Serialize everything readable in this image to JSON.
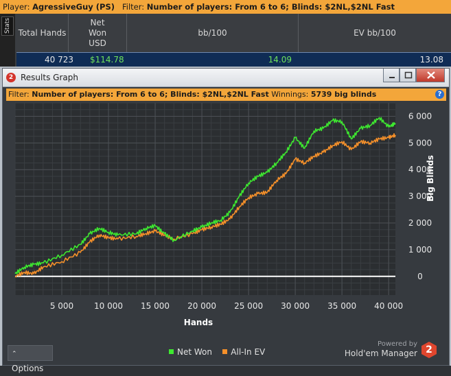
{
  "topbar": {
    "player_label": "Player:",
    "player_name": "AgressiveGuy (PS)",
    "filter_label": "Filter:",
    "filter_value": "Number of players: From 6 to 6; Blinds: $2NL,$2NL Fast"
  },
  "stats": {
    "tab_label": "Stats",
    "columns": [
      "Total Hands",
      "Net Won USD",
      "bb/100",
      "EV bb/100"
    ],
    "row": {
      "total_hands": "40 723",
      "net_won": "$114.78",
      "bb100": "14.09",
      "ev_bb100": "13.08"
    }
  },
  "window": {
    "app_icon": "2",
    "title": "Results Graph",
    "buttons": [
      "minimize-icon",
      "maximize-icon",
      "close-icon"
    ]
  },
  "filterbar": {
    "filter_label": "Filter:",
    "filter_value": "Number of players: From 6 to 6; Blinds: $2NL,$2NL Fast",
    "winnings_label": "Winnings:",
    "winnings_value": "5739 big blinds",
    "help_icon": "?"
  },
  "chart_data": {
    "type": "line",
    "xlabel": "Hands",
    "ylabel": "Big Blinds",
    "xlim": [
      0,
      40723
    ],
    "ylim": [
      -700,
      6500
    ],
    "xticks": [
      5000,
      10000,
      15000,
      20000,
      25000,
      30000,
      35000,
      40000
    ],
    "xtick_labels": [
      "5 000",
      "10 000",
      "15 000",
      "20 000",
      "25 000",
      "30 000",
      "35 000",
      "40 000"
    ],
    "yticks": [
      0,
      1000,
      2000,
      3000,
      4000,
      5000,
      6000
    ],
    "ytick_labels": [
      "0",
      "1 000",
      "2 000",
      "3 000",
      "4 000",
      "5 000",
      "6 000"
    ],
    "grid": true,
    "legend": "bottom",
    "colors": {
      "net_won": "#3ee830",
      "all_in_ev": "#f5902a",
      "zero_line": "#ffffff"
    },
    "series": [
      {
        "name": "Net Won",
        "x": [
          0,
          1000,
          2000,
          3000,
          5000,
          7000,
          8000,
          9000,
          10000,
          11000,
          13000,
          14000,
          15000,
          16000,
          17000,
          19000,
          20000,
          21000,
          22000,
          23000,
          24000,
          25000,
          26000,
          27000,
          28000,
          29000,
          30000,
          31000,
          32000,
          33000,
          34000,
          35000,
          36000,
          37000,
          38000,
          39000,
          40000,
          40723
        ],
        "values": [
          100,
          350,
          450,
          500,
          800,
          1200,
          1600,
          1800,
          1650,
          1550,
          1600,
          1800,
          1900,
          1600,
          1350,
          1700,
          1850,
          2000,
          2100,
          2400,
          3000,
          3500,
          3750,
          3900,
          4250,
          4650,
          5200,
          4800,
          5450,
          5550,
          5850,
          5800,
          5150,
          5550,
          5650,
          5950,
          5600,
          5739
        ]
      },
      {
        "name": "All-In EV",
        "x": [
          0,
          1000,
          2000,
          3000,
          5000,
          7000,
          8000,
          9000,
          10000,
          11000,
          13000,
          14000,
          15000,
          16000,
          17000,
          19000,
          20000,
          21000,
          22000,
          23000,
          24000,
          25000,
          26000,
          27000,
          28000,
          29000,
          30000,
          31000,
          32000,
          33000,
          34000,
          35000,
          36000,
          37000,
          38000,
          39000,
          40000,
          40723
        ],
        "values": [
          0,
          150,
          100,
          350,
          550,
          900,
          1300,
          1550,
          1450,
          1400,
          1500,
          1600,
          1700,
          1550,
          1400,
          1600,
          1750,
          1850,
          1950,
          2150,
          2600,
          2950,
          3100,
          3150,
          3600,
          3850,
          4400,
          4250,
          4500,
          4650,
          4900,
          5050,
          4750,
          5050,
          5000,
          5150,
          5200,
          5300
        ]
      }
    ]
  },
  "footer": {
    "options_label": "Options",
    "powered_label": "Powered by",
    "brand_name": "Hold'em Manager",
    "brand_logo": "2"
  }
}
